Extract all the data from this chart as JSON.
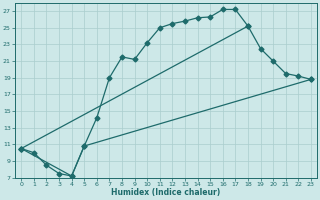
{
  "xlabel": "Humidex (Indice chaleur)",
  "xlim": [
    -0.5,
    23.5
  ],
  "ylim": [
    7,
    28
  ],
  "xticks": [
    0,
    1,
    2,
    3,
    4,
    5,
    6,
    7,
    8,
    9,
    10,
    11,
    12,
    13,
    14,
    15,
    16,
    17,
    18,
    19,
    20,
    21,
    22,
    23
  ],
  "yticks": [
    7,
    9,
    11,
    13,
    15,
    17,
    19,
    21,
    23,
    25,
    27
  ],
  "bg_color": "#cde8e8",
  "grid_color": "#aacece",
  "line_color": "#1e6b6b",
  "curve1_x": [
    0,
    1,
    2,
    3,
    4,
    5,
    6,
    7,
    8,
    9,
    10,
    11,
    12,
    13,
    14,
    15,
    16,
    17,
    18
  ],
  "curve1_y": [
    10.5,
    10.0,
    8.5,
    7.5,
    7.2,
    10.8,
    14.2,
    19.0,
    21.5,
    21.2,
    23.2,
    25.0,
    25.5,
    25.8,
    26.2,
    26.3,
    27.2,
    27.2,
    25.2
  ],
  "curve2_x": [
    0,
    18,
    19,
    20,
    21,
    22,
    23
  ],
  "curve2_y": [
    10.5,
    25.2,
    22.5,
    21.0,
    19.5,
    19.2,
    18.8
  ],
  "curve3_x": [
    0,
    4,
    5,
    23
  ],
  "curve3_y": [
    10.5,
    7.2,
    10.8,
    18.8
  ]
}
